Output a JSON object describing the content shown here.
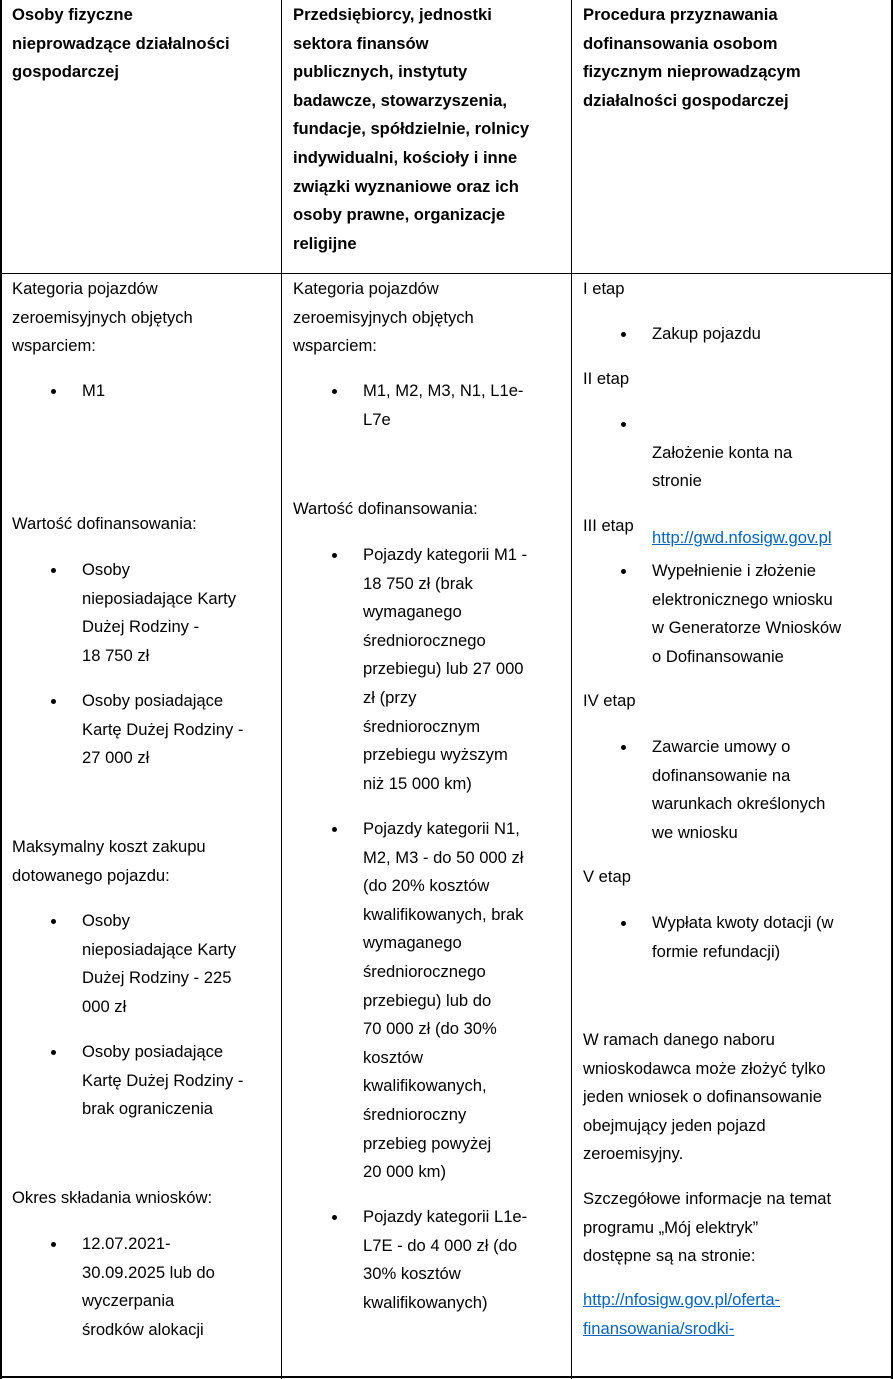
{
  "headers": [
    "Osoby fizyczne\nnieprowadzące działalności\ngospodarczej",
    "Przedsiębiorcy, jednostki\nsektora finansów\npublicznych, instytuty\nbadawcze, stowarzyszenia,\nfundacje, spółdzielnie, rolnicy\nindywidualni, kościoły i inne\nzwiązki wyznaniowe oraz ich\nosoby prawne, organizacje\nreligijne",
    "Procedura przyznawania\ndofinansowania osobom\nfizycznym nieprowadzącym\ndziałalności gospodarczej"
  ],
  "col1": {
    "category_label": "Kategoria pojazdów\nzeroemisyjnych objętych\nwsparciem:",
    "category_items": [
      "M1"
    ],
    "funding_label": "Wartość dofinansowania:",
    "funding_items": [
      "Osoby\nnieposiadające Karty\nDużej Rodziny -\n18 750 zł",
      "Osoby posiadające\nKartę Dużej Rodziny -\n27 000 zł"
    ],
    "max_cost_label": "Maksymalny koszt zakupu\ndotowanego pojazdu:",
    "max_cost_items": [
      "Osoby\nnieposiadające Karty\nDużej Rodziny - 225\n000 zł",
      "Osoby posiadające\nKartę Dużej Rodziny -\nbrak ograniczenia"
    ],
    "period_label": "Okres składania wniosków:",
    "period_items": [
      "12.07.2021-\n30.09.2025 lub do\nwyczerpania\nśrodków alokacji"
    ]
  },
  "col2": {
    "category_label": "Kategoria pojazdów\nzeroemisyjnych objętych\nwsparciem:",
    "category_items": [
      "M1, M2, M3, N1, L1e-\nL7e"
    ],
    "funding_label": "Wartość dofinansowania:",
    "funding_items": [
      "Pojazdy kategorii M1 -\n18 750 zł (brak\nwymaganego\nśredniorocznego\nprzebiegu) lub 27 000\nzł (przy\nśredniorocznym\nprzebiegu wyższym\nniż 15 000 km)",
      "Pojazdy kategorii N1,\nM2, M3 - do 50 000 zł\n(do 20% kosztów\nkwalifikowanych, brak\nwymaganego\nśredniorocznego\nprzebiegu) lub do\n70 000 zł (do 30%\nkosztów\nkwalifikowanych,\nśrednioroczny\nprzebieg powyżej\n20 000 km)",
      "Pojazdy kategorii L1e-\nL7E - do 4 000 zł (do\n30% kosztów\nkwalifikowanych)"
    ]
  },
  "col3": {
    "stages": [
      {
        "label": "I etap",
        "item": "Zakup pojazdu"
      },
      {
        "label": "II etap",
        "item": "Założenie konta na\nstronie",
        "link": "http://gwd.nfosigw.gov.pl"
      },
      {
        "label": "III etap",
        "item": "Wypełnienie i złożenie\nelektronicznego wniosku\nw Generatorze Wniosków\no Dofinansowanie"
      },
      {
        "label": "IV etap",
        "item": "Zawarcie umowy o\ndofinansowanie na\nwarunkach określonych\nwe wniosku"
      },
      {
        "label": "V etap",
        "item": "Wypłata kwoty dotacji (w\nformie refundacji)"
      }
    ],
    "note": "W ramach danego naboru\nwnioskodawca może złożyć tylko\njeden wniosek o dofinansowanie\nobejmujący jeden pojazd\nzeroemisyjny.",
    "info": "Szczegółowe informacje na temat\nprogramu „Mój elektryk”\ndostępne są na stronie:",
    "info_link": "http://nfosigw.gov.pl/oferta-\nfinansowania/srodki-"
  },
  "colors": {
    "link": "#0563c1",
    "border": "#000000"
  }
}
